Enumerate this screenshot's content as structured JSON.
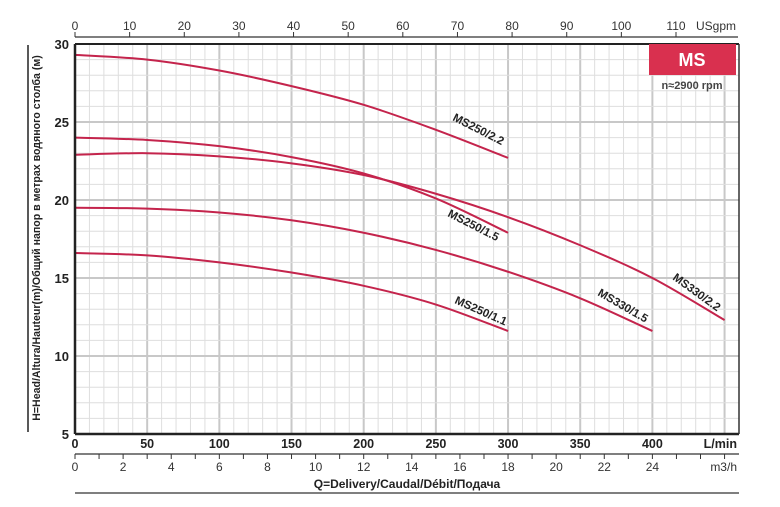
{
  "chart_data": {
    "type": "line",
    "badge": {
      "text": "MS",
      "color": "#d9304f"
    },
    "speed_note": "n≈2900 rpm",
    "xlabel": "Q=Delivery/Caudal/Débit/Подача",
    "ylabel": "H=Head/Altura/Hauteur(m)/Общий напор в метрах водяного столба (м)",
    "x_unit_primary": "L/min",
    "x_unit_secondary": "m3/h",
    "x_unit_top": "USgpm",
    "xlim": [
      0,
      460
    ],
    "ylim": [
      5,
      30
    ],
    "grid": true,
    "x_ticks": [
      0,
      50,
      100,
      150,
      200,
      250,
      300,
      350,
      400
    ],
    "y_ticks": [
      5,
      10,
      15,
      20,
      25,
      30
    ],
    "m3h_ticks": [
      0,
      2,
      4,
      6,
      8,
      10,
      12,
      14,
      16,
      18,
      20,
      22,
      24
    ],
    "usgpm_ticks": [
      0,
      10,
      20,
      30,
      40,
      50,
      60,
      70,
      80,
      90,
      100,
      110
    ],
    "curve_color": "#c4244c",
    "series": [
      {
        "name": "MS250/2.2",
        "x": [
          0,
          50,
          100,
          150,
          200,
          250,
          300
        ],
        "y": [
          29.3,
          29.0,
          28.3,
          27.3,
          26.1,
          24.5,
          22.7
        ]
      },
      {
        "name": "MS250/1.5",
        "x": [
          0,
          50,
          100,
          150,
          200,
          250,
          300
        ],
        "y": [
          24.0,
          23.85,
          23.45,
          22.75,
          21.7,
          20.1,
          17.9
        ]
      },
      {
        "name": "MS330/2.2",
        "x": [
          0,
          50,
          100,
          150,
          200,
          250,
          300,
          350,
          400,
          450
        ],
        "y": [
          22.9,
          23.0,
          22.8,
          22.35,
          21.6,
          20.4,
          18.9,
          17.1,
          15.0,
          12.3
        ]
      },
      {
        "name": "MS330/1.5",
        "x": [
          0,
          50,
          100,
          150,
          200,
          250,
          300,
          350,
          400
        ],
        "y": [
          19.5,
          19.45,
          19.2,
          18.7,
          17.9,
          16.8,
          15.4,
          13.7,
          11.6
        ]
      },
      {
        "name": "MS250/1.1",
        "x": [
          0,
          50,
          100,
          150,
          200,
          250,
          300
        ],
        "y": [
          16.6,
          16.45,
          16.0,
          15.35,
          14.5,
          13.3,
          11.6
        ]
      }
    ]
  }
}
